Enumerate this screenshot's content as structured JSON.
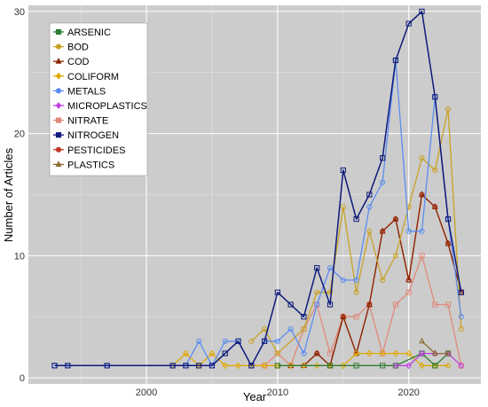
{
  "chart_data": {
    "type": "line",
    "title": "",
    "xlabel": "Year",
    "ylabel": "Number of Articles",
    "xlim": [
      1991,
      2025.5
    ],
    "ylim": [
      -0.5,
      30.5
    ],
    "xticks": [
      2000,
      2010,
      2020
    ],
    "yticks": [
      0,
      10,
      20,
      30
    ],
    "grid": true,
    "legend_position": "top-left",
    "series": [
      {
        "name": "ARSENIC",
        "color": "#2e7d32",
        "marker": "square",
        "x": [
          2010,
          2014,
          2016,
          2018,
          2019,
          2021,
          2022,
          2023
        ],
        "y": [
          1,
          1,
          1,
          1,
          1,
          2,
          1,
          2
        ]
      },
      {
        "name": "BOD",
        "color": "#c9a227",
        "marker": "circle",
        "x": [
          2008,
          2009,
          2010,
          2012,
          2013,
          2014,
          2015,
          2016,
          2017,
          2018,
          2019,
          2020,
          2021,
          2022,
          2023,
          2024
        ],
        "y": [
          3,
          4,
          2,
          4,
          7,
          7,
          14,
          7,
          12,
          8,
          10,
          14,
          18,
          17,
          22,
          4
        ]
      },
      {
        "name": "COD",
        "color": "#8b2500",
        "marker": "triangle",
        "x": [
          2011,
          2012,
          2013,
          2014,
          2015,
          2016,
          2017,
          2018,
          2019,
          2020,
          2021,
          2022,
          2023,
          2024
        ],
        "y": [
          1,
          1,
          2,
          1,
          5,
          2,
          6,
          12,
          13,
          8,
          15,
          14,
          11,
          7
        ]
      },
      {
        "name": "COLIFORM",
        "color": "#e0a800",
        "marker": "diamond",
        "x": [
          2002,
          2003,
          2004,
          2005,
          2006,
          2007,
          2008,
          2009,
          2010,
          2011,
          2012,
          2013,
          2014,
          2015,
          2016,
          2017,
          2018,
          2019,
          2020,
          2021,
          2022,
          2023
        ],
        "y": [
          1,
          2,
          1,
          2,
          1,
          1,
          1,
          1,
          1,
          1,
          1,
          1,
          1,
          1,
          2,
          2,
          2,
          2,
          2,
          1,
          1,
          1
        ]
      },
      {
        "name": "METALS",
        "color": "#5b8def",
        "marker": "circle",
        "x": [
          1993,
          1994,
          1997,
          2002,
          2003,
          2004,
          2005,
          2006,
          2007,
          2008,
          2009,
          2010,
          2011,
          2012,
          2013,
          2014,
          2015,
          2016,
          2017,
          2018,
          2019,
          2020,
          2021,
          2022,
          2023,
          2024
        ],
        "y": [
          1,
          1,
          1,
          1,
          1,
          3,
          1,
          3,
          3,
          1,
          3,
          3,
          4,
          2,
          6,
          9,
          8,
          8,
          14,
          16,
          26,
          12,
          12,
          23,
          13,
          5
        ]
      },
      {
        "name": "MICROPLASTICS",
        "color": "#c040e0",
        "marker": "diamond",
        "x": [
          2019,
          2020,
          2021,
          2022,
          2023,
          2024
        ],
        "y": [
          1,
          1,
          2,
          2,
          2,
          1
        ]
      },
      {
        "name": "NITRATE",
        "color": "#e08a7a",
        "marker": "square",
        "x": [
          2008,
          2009,
          2010,
          2011,
          2012,
          2013,
          2014,
          2015,
          2016,
          2017,
          2018,
          2019,
          2020,
          2021,
          2022,
          2023,
          2024
        ],
        "y": [
          1,
          1,
          2,
          1,
          4,
          6,
          2,
          5,
          5,
          6,
          2,
          6,
          7,
          10,
          6,
          6,
          1
        ]
      },
      {
        "name": "NITROGEN",
        "color": "#0d1a7a",
        "marker": "square",
        "x": [
          1993,
          1994,
          1997,
          2002,
          2003,
          2004,
          2005,
          2006,
          2007,
          2008,
          2009,
          2010,
          2011,
          2012,
          2013,
          2014,
          2015,
          2016,
          2017,
          2018,
          2019,
          2020,
          2021,
          2022,
          2023,
          2024
        ],
        "y": [
          1,
          1,
          1,
          1,
          1,
          1,
          1,
          2,
          3,
          1,
          3,
          7,
          6,
          5,
          9,
          6,
          17,
          13,
          15,
          18,
          26,
          29,
          30,
          23,
          13,
          7
        ]
      },
      {
        "name": "PESTICIDES",
        "color": "#c0392b",
        "marker": "circle",
        "x": [
          2012,
          2013,
          2014,
          2015,
          2016,
          2017,
          2018,
          2019,
          2020,
          2021,
          2022,
          2023,
          2024
        ],
        "y": [
          1,
          2,
          1,
          5,
          2,
          6,
          12,
          13,
          8,
          15,
          14,
          11,
          7
        ]
      },
      {
        "name": "PLASTICS",
        "color": "#8b6b2e",
        "marker": "triangle",
        "x": [
          2021,
          2022,
          2023
        ],
        "y": [
          3,
          2,
          2
        ]
      }
    ]
  }
}
